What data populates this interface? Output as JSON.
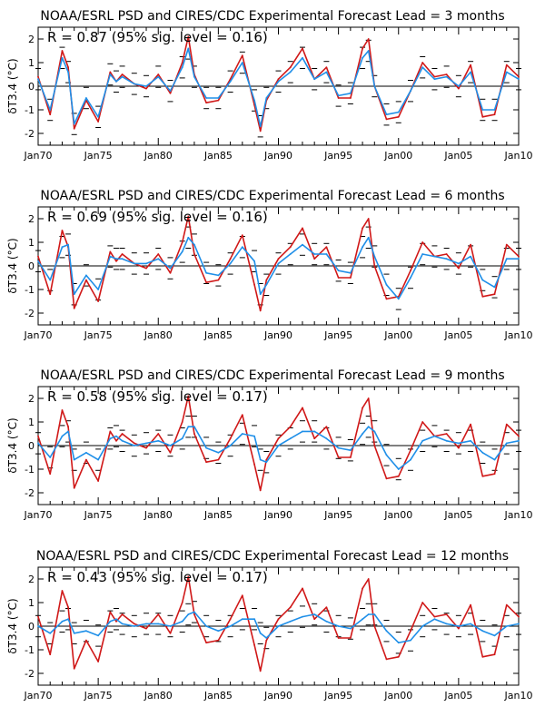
{
  "figure": {
    "ylabel": "δT3.4 (°C)",
    "x_tick_labels": [
      "Jan70",
      "Jan75",
      "Jan80",
      "Jan85",
      "Jan90",
      "Jan95",
      "Jan00",
      "Jan05",
      "Jan10"
    ],
    "y_tick_labels": [
      "-2",
      "-1",
      "0",
      "1",
      "2"
    ]
  },
  "panels": [
    {
      "title": "NOAA/ESRL PSD and CIRES/CDC Experimental Forecast Lead = 3 months",
      "stat": "R = 0.87 (95% sig. level = 0.16)"
    },
    {
      "title": "NOAA/ESRL PSD and CIRES/CDC Experimental Forecast Lead = 6 months",
      "stat": "R = 0.69 (95% sig. level = 0.16)"
    },
    {
      "title": "NOAA/ESRL PSD and CIRES/CDC Experimental Forecast Lead = 9 months",
      "stat": "R = 0.58 (95% sig. level = 0.17)"
    },
    {
      "title": "NOAA/ESRL PSD and CIRES/CDC Experimental Forecast Lead = 12 months",
      "stat": "R = 0.43 (95% sig. level = 0.17)"
    }
  ],
  "chart_data": [
    {
      "type": "line",
      "title": "NOAA/ESRL PSD and CIRES/CDC Experimental Forecast Lead = 3 months",
      "xlabel": "",
      "ylabel": "δT3.4 (°C)",
      "xlim": [
        1970,
        2010
      ],
      "ylim": [
        -2.5,
        2.5
      ],
      "x_ticks": [
        "Jan70",
        "Jan75",
        "Jan80",
        "Jan85",
        "Jan90",
        "Jan95",
        "Jan00",
        "Jan05",
        "Jan10"
      ],
      "y_ticks": [
        -2,
        -1,
        0,
        1,
        2
      ],
      "x": [
        1970,
        1971,
        1972,
        1972.5,
        1973,
        1974,
        1975,
        1976,
        1976.5,
        1977,
        1978,
        1979,
        1980,
        1981,
        1982,
        1982.5,
        1983,
        1984,
        1985,
        1986,
        1987,
        1988,
        1988.5,
        1989,
        1990,
        1991,
        1992,
        1993,
        1994,
        1995,
        1996,
        1997,
        1997.5,
        1998,
        1999,
        2000,
        2001,
        2002,
        2003,
        2004,
        2005,
        2006,
        2007,
        2008,
        2009,
        2010
      ],
      "series": [
        {
          "color": "#d01818",
          "values": [
            0.4,
            -1.2,
            1.5,
            0.8,
            -1.8,
            -0.6,
            -1.5,
            0.6,
            0.2,
            0.5,
            0.1,
            -0.1,
            0.5,
            -0.3,
            1.0,
            2.1,
            0.5,
            -0.7,
            -0.6,
            0.3,
            1.3,
            -0.8,
            -1.9,
            -0.6,
            0.3,
            0.8,
            1.6,
            0.3,
            0.8,
            -0.5,
            -0.5,
            1.6,
            2.0,
            0.0,
            -1.4,
            -1.3,
            -0.2,
            1.0,
            0.4,
            0.5,
            -0.1,
            0.9,
            -1.3,
            -1.2,
            0.9,
            0.4
          ]
        },
        {
          "color": "#1f8fe8",
          "values": [
            0.3,
            -1.0,
            1.2,
            0.6,
            -1.6,
            -0.5,
            -1.3,
            0.5,
            0.2,
            0.4,
            0.1,
            0.0,
            0.4,
            -0.2,
            0.8,
            1.6,
            0.4,
            -0.5,
            -0.5,
            0.2,
            1.0,
            -0.6,
            -1.7,
            -0.5,
            0.2,
            0.6,
            1.2,
            0.3,
            0.6,
            -0.4,
            -0.3,
            1.2,
            1.5,
            0.0,
            -1.2,
            -1.1,
            -0.2,
            0.8,
            0.3,
            0.4,
            0.0,
            0.6,
            -1.0,
            -1.0,
            0.6,
            0.3
          ]
        }
      ]
    },
    {
      "type": "line",
      "title": "NOAA/ESRL PSD and CIRES/CDC Experimental Forecast Lead = 6 months",
      "xlabel": "",
      "ylabel": "δT3.4 (°C)",
      "xlim": [
        1970,
        2010
      ],
      "ylim": [
        -2.5,
        2.5
      ],
      "x_ticks": [
        "Jan70",
        "Jan75",
        "Jan80",
        "Jan85",
        "Jan90",
        "Jan95",
        "Jan00",
        "Jan05",
        "Jan10"
      ],
      "y_ticks": [
        -2,
        -1,
        0,
        1,
        2
      ],
      "x": [
        1970,
        1971,
        1972,
        1972.5,
        1973,
        1974,
        1975,
        1976,
        1976.5,
        1977,
        1978,
        1979,
        1980,
        1981,
        1982,
        1982.5,
        1983,
        1984,
        1985,
        1986,
        1987,
        1988,
        1988.5,
        1989,
        1990,
        1991,
        1992,
        1993,
        1994,
        1995,
        1996,
        1997,
        1997.5,
        1998,
        1999,
        2000,
        2001,
        2002,
        2003,
        2004,
        2005,
        2006,
        2007,
        2008,
        2009,
        2010
      ],
      "series": [
        {
          "color": "#d01818",
          "values": [
            0.4,
            -1.2,
            1.5,
            0.8,
            -1.8,
            -0.6,
            -1.5,
            0.6,
            0.2,
            0.5,
            0.1,
            -0.1,
            0.5,
            -0.3,
            1.0,
            2.1,
            0.5,
            -0.7,
            -0.6,
            0.3,
            1.3,
            -0.8,
            -1.9,
            -0.6,
            0.3,
            0.8,
            1.6,
            0.3,
            0.8,
            -0.5,
            -0.5,
            1.6,
            2.0,
            0.0,
            -1.4,
            -1.3,
            -0.2,
            1.0,
            0.4,
            0.5,
            -0.1,
            0.9,
            -1.3,
            -1.2,
            0.9,
            0.4
          ]
        },
        {
          "color": "#1f8fe8",
          "values": [
            0.2,
            -0.6,
            0.8,
            0.9,
            -1.2,
            -0.4,
            -1.0,
            0.4,
            0.3,
            0.3,
            0.1,
            0.1,
            0.3,
            -0.1,
            0.6,
            1.2,
            0.9,
            -0.3,
            -0.4,
            0.1,
            0.8,
            0.2,
            -1.2,
            -0.8,
            0.1,
            0.5,
            0.9,
            0.5,
            0.5,
            -0.2,
            -0.3,
            0.8,
            1.2,
            0.4,
            -0.8,
            -1.4,
            -0.5,
            0.5,
            0.4,
            0.3,
            0.1,
            0.4,
            -0.6,
            -0.9,
            0.3,
            0.3
          ]
        }
      ]
    },
    {
      "type": "line",
      "title": "NOAA/ESRL PSD and CIRES/CDC Experimental Forecast Lead = 9 months",
      "xlabel": "",
      "ylabel": "δT3.4 (°C)",
      "xlim": [
        1970,
        2010
      ],
      "ylim": [
        -2.5,
        2.5
      ],
      "x_ticks": [
        "Jan70",
        "Jan75",
        "Jan80",
        "Jan85",
        "Jan90",
        "Jan95",
        "Jan00",
        "Jan05",
        "Jan10"
      ],
      "y_ticks": [
        -2,
        -1,
        0,
        1,
        2
      ],
      "x": [
        1970,
        1971,
        1972,
        1972.5,
        1973,
        1974,
        1975,
        1976,
        1976.5,
        1977,
        1978,
        1979,
        1980,
        1981,
        1982,
        1982.5,
        1983,
        1984,
        1985,
        1986,
        1987,
        1988,
        1988.5,
        1989,
        1990,
        1991,
        1992,
        1993,
        1994,
        1995,
        1996,
        1997,
        1997.5,
        1998,
        1999,
        2000,
        2001,
        2002,
        2003,
        2004,
        2005,
        2006,
        2007,
        2008,
        2009,
        2010
      ],
      "series": [
        {
          "color": "#d01818",
          "values": [
            0.4,
            -1.2,
            1.5,
            0.8,
            -1.8,
            -0.6,
            -1.5,
            0.6,
            0.2,
            0.5,
            0.1,
            -0.1,
            0.5,
            -0.3,
            1.0,
            2.1,
            0.5,
            -0.7,
            -0.6,
            0.3,
            1.3,
            -0.8,
            -1.9,
            -0.6,
            0.3,
            0.8,
            1.6,
            0.3,
            0.8,
            -0.5,
            -0.5,
            1.6,
            2.0,
            0.0,
            -1.4,
            -1.3,
            -0.2,
            1.0,
            0.4,
            0.5,
            -0.1,
            0.9,
            -1.3,
            -1.2,
            0.9,
            0.4
          ]
        },
        {
          "color": "#1f8fe8",
          "values": [
            0.1,
            -0.5,
            0.4,
            0.6,
            -0.6,
            -0.3,
            -0.6,
            0.3,
            0.4,
            0.2,
            0.0,
            0.1,
            0.2,
            0.0,
            0.3,
            0.8,
            0.8,
            -0.1,
            -0.3,
            0.0,
            0.5,
            0.4,
            -0.6,
            -0.7,
            0.0,
            0.3,
            0.6,
            0.6,
            0.3,
            -0.1,
            -0.2,
            0.5,
            0.8,
            0.6,
            -0.4,
            -1.0,
            -0.6,
            0.2,
            0.4,
            0.2,
            0.1,
            0.2,
            -0.3,
            -0.6,
            0.1,
            0.2
          ]
        }
      ]
    },
    {
      "type": "line",
      "title": "NOAA/ESRL PSD and CIRES/CDC Experimental Forecast Lead = 12 months",
      "xlabel": "",
      "ylabel": "δT3.4 (°C)",
      "xlim": [
        1970,
        2010
      ],
      "ylim": [
        -2.5,
        2.5
      ],
      "x_ticks": [
        "Jan70",
        "Jan75",
        "Jan80",
        "Jan85",
        "Jan90",
        "Jan95",
        "Jan00",
        "Jan05",
        "Jan10"
      ],
      "y_ticks": [
        -2,
        -1,
        0,
        1,
        2
      ],
      "x": [
        1970,
        1971,
        1972,
        1972.5,
        1973,
        1974,
        1975,
        1976,
        1976.5,
        1977,
        1978,
        1979,
        1980,
        1981,
        1982,
        1982.5,
        1983,
        1984,
        1985,
        1986,
        1987,
        1988,
        1988.5,
        1989,
        1990,
        1991,
        1992,
        1993,
        1994,
        1995,
        1996,
        1997,
        1997.5,
        1998,
        1999,
        2000,
        2001,
        2002,
        2003,
        2004,
        2005,
        2006,
        2007,
        2008,
        2009,
        2010
      ],
      "series": [
        {
          "color": "#d01818",
          "values": [
            0.4,
            -1.2,
            1.5,
            0.8,
            -1.8,
            -0.6,
            -1.5,
            0.6,
            0.2,
            0.5,
            0.1,
            -0.1,
            0.5,
            -0.3,
            1.0,
            2.1,
            0.5,
            -0.7,
            -0.6,
            0.3,
            1.3,
            -0.8,
            -1.9,
            -0.6,
            0.3,
            0.8,
            1.6,
            0.3,
            0.8,
            -0.5,
            -0.5,
            1.6,
            2.0,
            0.0,
            -1.4,
            -1.3,
            -0.2,
            1.0,
            0.4,
            0.5,
            -0.1,
            0.9,
            -1.3,
            -1.2,
            0.9,
            0.4
          ]
        },
        {
          "color": "#1f8fe8",
          "values": [
            0.0,
            -0.3,
            0.2,
            0.3,
            -0.3,
            -0.2,
            -0.4,
            0.2,
            0.3,
            0.1,
            0.0,
            0.1,
            0.1,
            0.0,
            0.2,
            0.5,
            0.6,
            0.0,
            -0.2,
            0.0,
            0.3,
            0.3,
            -0.3,
            -0.5,
            0.0,
            0.2,
            0.4,
            0.5,
            0.2,
            0.0,
            -0.1,
            0.3,
            0.5,
            0.5,
            -0.2,
            -0.7,
            -0.6,
            0.0,
            0.3,
            0.1,
            0.0,
            0.1,
            -0.2,
            -0.4,
            0.0,
            0.1
          ]
        }
      ]
    }
  ]
}
